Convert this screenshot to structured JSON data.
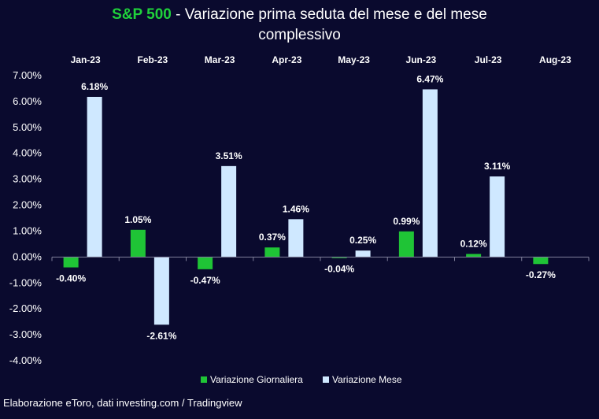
{
  "title": {
    "brand": "S&P 500",
    "rest_line1": " - Variazione prima seduta del mese e del mese",
    "rest_line2": "complessivo"
  },
  "source": "Elaborazione eToro, dati investing.com / Tradingview",
  "colors": {
    "background": "#0a0a2e",
    "daily": "#1fc436",
    "monthly": "#cfe8ff",
    "brand": "#1fd13b"
  },
  "chart_data": {
    "type": "bar",
    "categories": [
      "Jan-23",
      "Feb-23",
      "Mar-23",
      "Apr-23",
      "May-23",
      "Jun-23",
      "Jul-23",
      "Aug-23"
    ],
    "series": [
      {
        "name": "Variazione Giornaliera",
        "values": [
          -0.4,
          1.05,
          -0.47,
          0.37,
          -0.04,
          0.99,
          0.12,
          -0.27
        ]
      },
      {
        "name": "Variazione Mese",
        "values": [
          6.18,
          -2.61,
          3.51,
          1.46,
          0.25,
          6.47,
          3.11,
          null
        ]
      }
    ],
    "data_labels": {
      "Variazione Giornaliera": [
        "-0.40%",
        "1.05%",
        "-0.47%",
        "0.37%",
        "-0.04%",
        "0.99%",
        "0.12%",
        "-0.27%"
      ],
      "Variazione Mese": [
        "6.18%",
        "-2.61%",
        "3.51%",
        "1.46%",
        "0.25%",
        "6.47%",
        "3.11%",
        ""
      ]
    },
    "ylim": [
      -4,
      7
    ],
    "yticks": [
      7,
      6,
      5,
      4,
      3,
      2,
      1,
      0,
      -1,
      -2,
      -3,
      -4
    ],
    "ytick_labels": [
      "7.00%",
      "6.00%",
      "5.00%",
      "4.00%",
      "3.00%",
      "2.00%",
      "1.00%",
      "0.00%",
      "-1.00%",
      "-2.00%",
      "-3.00%",
      "-4.00%"
    ],
    "category_axis_position": "top",
    "legend_position": "bottom",
    "grid": false
  }
}
